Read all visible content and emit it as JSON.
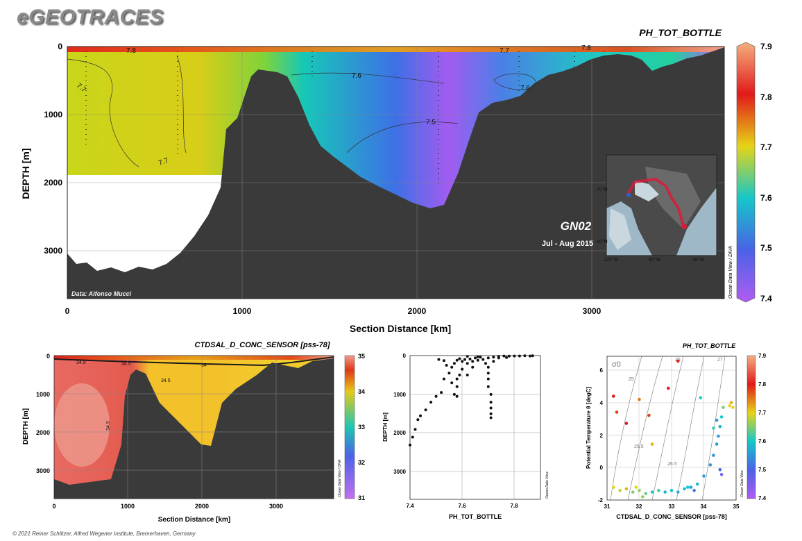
{
  "brand": "eGEOTRACES",
  "footer": "© 2021 Reiner Schlitzer, Alfred Wegener Institute, Bremerhaven, Germany",
  "chart_data": [
    {
      "type": "heatmap",
      "title": "PH_TOT_BOTTLE",
      "xlabel": "Section Distance [km]",
      "ylabel": "DEPTH [m]",
      "xlim": [
        0,
        3800
      ],
      "ylim": [
        3700,
        0
      ],
      "xticks": [
        "0",
        "1000",
        "2000",
        "3000"
      ],
      "yticks": [
        "0",
        "1000",
        "2000",
        "3000"
      ],
      "colorbar": {
        "min": 7.4,
        "max": 7.9,
        "ticks": [
          "7.4",
          "7.5",
          "7.6",
          "7.7",
          "7.8",
          "7.9"
        ],
        "label": "Ocean Data View / DIVA"
      },
      "contour_labels": [
        "7.8",
        "7.7",
        "7.7",
        "7.6",
        "7.6",
        "7.5",
        "7.7",
        "7.8"
      ],
      "annotations": {
        "section": "GN02",
        "period": "Jul - Aug 2015",
        "credit": "Data: Alfonso Mucci"
      },
      "inset_map": {
        "lat_labels": [
          "70°N",
          "60°N"
        ],
        "lon_labels": [
          "120°W",
          "80°W",
          "40°W"
        ],
        "route_color": "#d81b3c"
      },
      "colors": {
        "seafloor": "#3a3a3a"
      }
    },
    {
      "type": "heatmap",
      "title": "CTDSAL_D_CONC_SENSOR [pss-78]",
      "xlabel": "Section Distance [km]",
      "ylabel": "DEPTH [m]",
      "xlim": [
        0,
        3800
      ],
      "ylim": [
        3700,
        0
      ],
      "xticks": [
        "0",
        "1000",
        "2000",
        "3000"
      ],
      "yticks": [
        "0",
        "1000",
        "2000",
        "3000"
      ],
      "colorbar": {
        "min": 31,
        "max": 35,
        "ticks": [
          "31",
          "32",
          "33",
          "34",
          "35"
        ],
        "label": "Ocean Data View / DIVA"
      },
      "contour_labels": [
        "34.9",
        "34.5",
        "34",
        "34.5",
        "34.9"
      ]
    },
    {
      "type": "scatter",
      "title": "",
      "xlabel": "PH_TOT_BOTTLE",
      "ylabel": "DEPTH [m]",
      "xlim": [
        7.4,
        7.9
      ],
      "ylim": [
        3700,
        0
      ],
      "xticks": [
        "7.4",
        "7.6",
        "7.8"
      ],
      "yticks": [
        "0",
        "1000",
        "2000",
        "3000"
      ],
      "side_label": "Ocean Data View",
      "points": [
        [
          7.4,
          2300
        ],
        [
          7.41,
          2100
        ],
        [
          7.42,
          1900
        ],
        [
          7.43,
          1650
        ],
        [
          7.44,
          1550
        ],
        [
          7.46,
          1400
        ],
        [
          7.48,
          1200
        ],
        [
          7.5,
          1050
        ],
        [
          7.52,
          950
        ],
        [
          7.53,
          600
        ],
        [
          7.55,
          450
        ],
        [
          7.56,
          300
        ],
        [
          7.57,
          200
        ],
        [
          7.58,
          120
        ],
        [
          7.59,
          80
        ],
        [
          7.6,
          150
        ],
        [
          7.61,
          100
        ],
        [
          7.62,
          200
        ],
        [
          7.63,
          90
        ],
        [
          7.64,
          150
        ],
        [
          7.65,
          60
        ],
        [
          7.66,
          120
        ],
        [
          7.67,
          40
        ],
        [
          7.68,
          100
        ],
        [
          7.7,
          60
        ],
        [
          7.72,
          40
        ],
        [
          7.74,
          20
        ],
        [
          7.76,
          10
        ],
        [
          7.78,
          15
        ],
        [
          7.8,
          10
        ],
        [
          7.82,
          10
        ],
        [
          7.84,
          5
        ],
        [
          7.86,
          10
        ],
        [
          7.87,
          5
        ],
        [
          7.58,
          600
        ],
        [
          7.58,
          800
        ],
        [
          7.57,
          1000
        ],
        [
          7.58,
          1050
        ],
        [
          7.56,
          700
        ],
        [
          7.59,
          500
        ],
        [
          7.6,
          350
        ],
        [
          7.62,
          500
        ],
        [
          7.64,
          300
        ],
        [
          7.7,
          300
        ],
        [
          7.7,
          450
        ],
        [
          7.7,
          600
        ],
        [
          7.7,
          800
        ],
        [
          7.71,
          1000
        ],
        [
          7.71,
          1200
        ],
        [
          7.71,
          1350
        ],
        [
          7.71,
          1500
        ],
        [
          7.71,
          1600
        ],
        [
          7.69,
          200
        ],
        [
          7.72,
          150
        ],
        [
          7.54,
          250
        ],
        [
          7.51,
          100
        ],
        [
          7.53,
          130
        ],
        [
          7.62,
          20
        ],
        [
          7.66,
          30
        ],
        [
          7.74,
          60
        ],
        [
          7.77,
          50
        ]
      ]
    },
    {
      "type": "scatter",
      "title": "PH_TOT_BOTTLE",
      "xlabel": "CTDSAL_D_CONC_SENSOR [pss-78]",
      "ylabel": "Potential Temperature θ [degC]",
      "xlim": [
        31,
        35
      ],
      "ylim": [
        -2,
        7
      ],
      "xticks": [
        "31",
        "32",
        "33",
        "34",
        "35"
      ],
      "yticks": [
        "-2",
        "0",
        "2",
        "4",
        "6"
      ],
      "isopycnal_label": "σ0",
      "isopycnal_values": [
        "25",
        "25.5",
        "26",
        "26.5",
        "27"
      ],
      "colorbar": {
        "min": 7.4,
        "max": 7.9,
        "ticks": [
          "7.4",
          "7.5",
          "7.6",
          "7.7",
          "7.8",
          "7.9"
        ],
        "label": "Ocean Data View"
      },
      "points": [
        [
          31.2,
          -1.2,
          7.7
        ],
        [
          31.4,
          -1.4,
          7.68
        ],
        [
          31.6,
          -1.3,
          7.72
        ],
        [
          31.8,
          -1.5,
          7.65
        ],
        [
          32.0,
          -1.4,
          7.66
        ],
        [
          32.2,
          -1.6,
          7.64
        ],
        [
          32.4,
          -1.5,
          7.6
        ],
        [
          32.6,
          -1.4,
          7.62
        ],
        [
          32.8,
          -1.5,
          7.58
        ],
        [
          33.0,
          -1.4,
          7.6
        ],
        [
          33.2,
          -1.5,
          7.57
        ],
        [
          33.4,
          -1.3,
          7.58
        ],
        [
          33.6,
          -1.2,
          7.56
        ],
        [
          33.8,
          -1.0,
          7.58
        ],
        [
          34.0,
          -0.5,
          7.56
        ],
        [
          34.2,
          0.2,
          7.55
        ],
        [
          34.3,
          0.8,
          7.55
        ],
        [
          34.4,
          1.5,
          7.56
        ],
        [
          34.45,
          2.0,
          7.56
        ],
        [
          34.5,
          2.6,
          7.58
        ],
        [
          34.55,
          3.2,
          7.6
        ],
        [
          34.6,
          3.8,
          7.65
        ],
        [
          34.8,
          3.9,
          7.7
        ],
        [
          34.85,
          4.1,
          7.72
        ],
        [
          34.9,
          3.8,
          7.7
        ],
        [
          34.5,
          -0.1,
          7.5
        ],
        [
          34.55,
          -0.4,
          7.45
        ],
        [
          31.2,
          4.5,
          7.8
        ],
        [
          31.3,
          3.5,
          7.78
        ],
        [
          31.6,
          2.8,
          7.8
        ],
        [
          32.0,
          4.3,
          7.75
        ],
        [
          32.4,
          1.5,
          7.72
        ],
        [
          32.9,
          5.0,
          7.8
        ],
        [
          33.2,
          6.7,
          7.8
        ],
        [
          32.3,
          3.3,
          7.78
        ],
        [
          33.9,
          4.4,
          7.6
        ],
        [
          34.3,
          2.5,
          7.62
        ],
        [
          34.4,
          3.0,
          7.55
        ],
        [
          33.5,
          -1.2,
          7.6
        ],
        [
          33.7,
          -1.4,
          7.52
        ],
        [
          32.1,
          -1.8,
          7.66
        ],
        [
          31.9,
          -1.2,
          7.7
        ]
      ]
    }
  ]
}
